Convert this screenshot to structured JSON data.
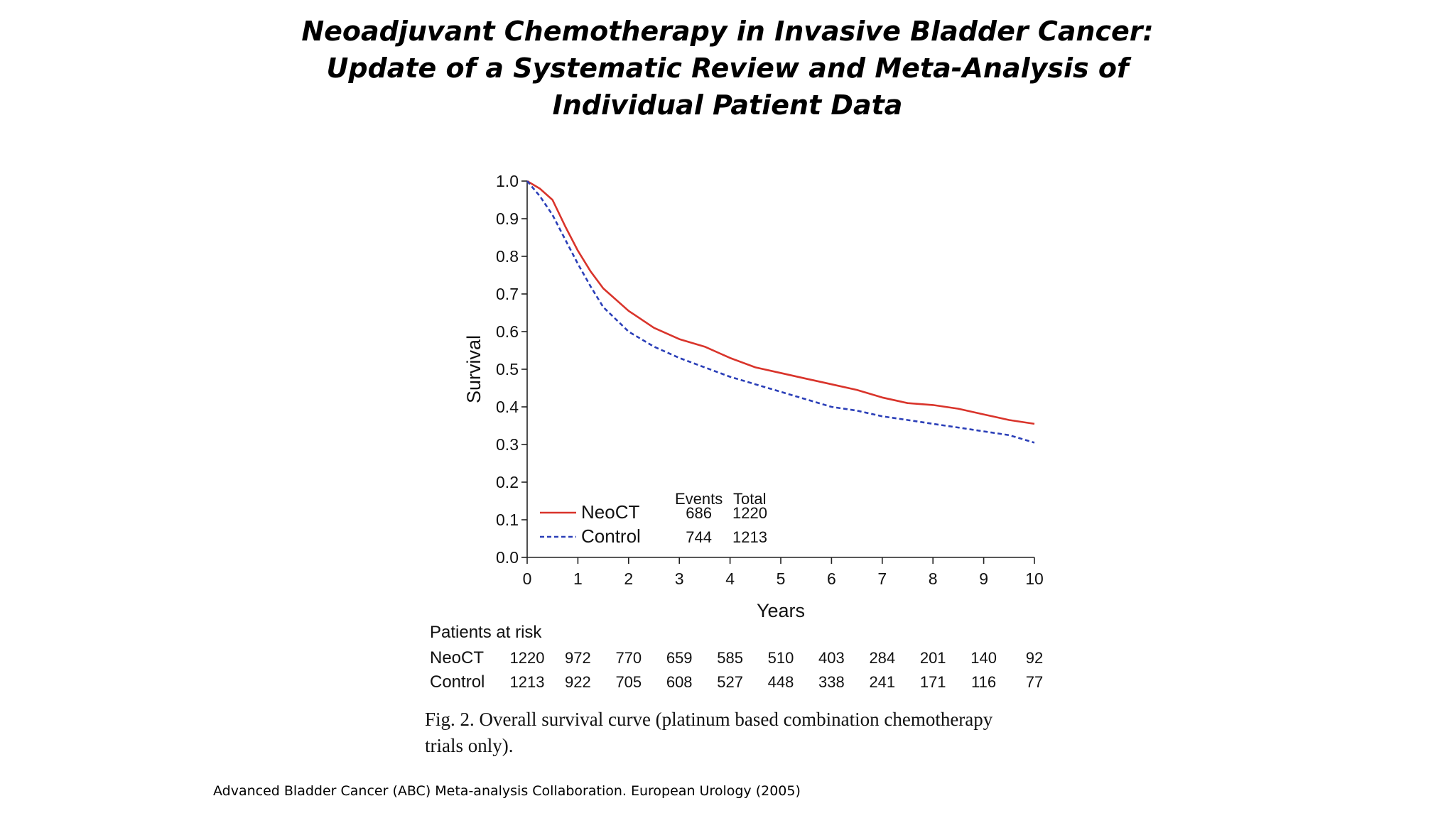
{
  "slide": {
    "title_lines": [
      "Neoadjuvant Chemotherapy in Invasive Bladder Cancer:",
      "Update of a Systematic Review and Meta-Analysis of",
      "Individual Patient Data"
    ],
    "footnote": "Advanced Bladder Cancer (ABC) Meta-analysis Collaboration. European Urology (2005)"
  },
  "figure": {
    "caption_lines": [
      "Fig. 2.  Overall survival curve (platinum based combination chemotherapy",
      "trials only)."
    ]
  },
  "chart_data": {
    "type": "line",
    "xlabel": "Years",
    "ylabel": "Survival",
    "xlim": [
      0,
      10
    ],
    "ylim": [
      0,
      1.0
    ],
    "x_ticks": [
      0,
      1,
      2,
      3,
      4,
      5,
      6,
      7,
      8,
      9,
      10
    ],
    "y_ticks": [
      0.0,
      0.1,
      0.2,
      0.3,
      0.4,
      0.5,
      0.6,
      0.7,
      0.8,
      0.9,
      1.0
    ],
    "x_tick_labels": [
      "0",
      "1",
      "2",
      "3",
      "4",
      "5",
      "6",
      "7",
      "8",
      "9",
      "10"
    ],
    "y_tick_labels": [
      "0.0",
      "0.1",
      "0.2",
      "0.3",
      "0.4",
      "0.5",
      "0.6",
      "0.7",
      "0.8",
      "0.9",
      "1.0"
    ],
    "legend": {
      "placement": "bottom-left",
      "headers": [
        "Events",
        "Total"
      ],
      "entries": [
        {
          "name": "NeoCT",
          "events": "686",
          "total": "1220"
        },
        {
          "name": "Control",
          "events": "744",
          "total": "1213"
        }
      ]
    },
    "series": [
      {
        "name": "NeoCT",
        "color": "#d9342b",
        "style": "solid",
        "x": [
          0,
          0.25,
          0.5,
          0.75,
          1.0,
          1.25,
          1.5,
          2.0,
          2.5,
          3.0,
          3.5,
          4.0,
          4.5,
          5.0,
          5.5,
          6.0,
          6.5,
          7.0,
          7.5,
          8.0,
          8.5,
          9.0,
          9.5,
          10.0
        ],
        "y": [
          1.0,
          0.98,
          0.95,
          0.88,
          0.815,
          0.76,
          0.715,
          0.655,
          0.61,
          0.58,
          0.56,
          0.53,
          0.505,
          0.49,
          0.475,
          0.46,
          0.445,
          0.425,
          0.41,
          0.405,
          0.395,
          0.38,
          0.365,
          0.355
        ]
      },
      {
        "name": "Control",
        "color": "#2b3fb8",
        "style": "dashed",
        "x": [
          0,
          0.25,
          0.5,
          0.75,
          1.0,
          1.25,
          1.5,
          2.0,
          2.5,
          3.0,
          3.5,
          4.0,
          4.5,
          5.0,
          5.5,
          6.0,
          6.5,
          7.0,
          7.5,
          8.0,
          8.5,
          9.0,
          9.5,
          10.0
        ],
        "y": [
          1.0,
          0.96,
          0.91,
          0.845,
          0.78,
          0.72,
          0.665,
          0.6,
          0.56,
          0.53,
          0.505,
          0.48,
          0.46,
          0.44,
          0.42,
          0.4,
          0.39,
          0.375,
          0.365,
          0.355,
          0.345,
          0.335,
          0.325,
          0.305
        ]
      }
    ],
    "risk_table": {
      "title": "Patients at risk",
      "rows": [
        {
          "label": "NeoCT",
          "values": [
            "1220",
            "972",
            "770",
            "659",
            "585",
            "510",
            "403",
            "284",
            "201",
            "140",
            "92"
          ]
        },
        {
          "label": "Control",
          "values": [
            "1213",
            "922",
            "705",
            "608",
            "527",
            "448",
            "338",
            "241",
            "171",
            "116",
            "77"
          ]
        }
      ]
    }
  }
}
